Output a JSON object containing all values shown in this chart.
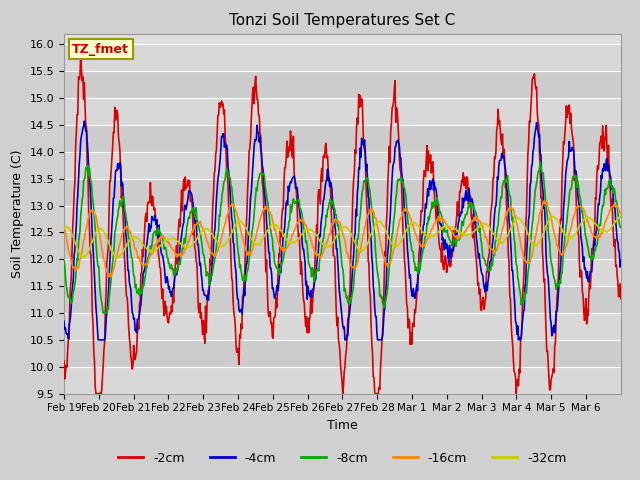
{
  "title": "Tonzi Soil Temperatures Set C",
  "xlabel": "Time",
  "ylabel": "Soil Temperature (C)",
  "ylim": [
    9.5,
    16.2
  ],
  "yticks": [
    9.5,
    10.0,
    10.5,
    11.0,
    11.5,
    12.0,
    12.5,
    13.0,
    13.5,
    14.0,
    14.5,
    15.0,
    15.5,
    16.0
  ],
  "annotation_text": "TZ_fmet",
  "annotation_bg": "#ffffcc",
  "annotation_border": "#999900",
  "series_order": [
    "-2cm",
    "-4cm",
    "-8cm",
    "-16cm",
    "-32cm"
  ],
  "series": {
    "-2cm": {
      "color": "#dd0000",
      "lw": 1.2
    },
    "-4cm": {
      "color": "#0000cc",
      "lw": 1.2
    },
    "-8cm": {
      "color": "#00aa00",
      "lw": 1.2
    },
    "-16cm": {
      "color": "#ff8800",
      "lw": 1.2
    },
    "-32cm": {
      "color": "#cccc00",
      "lw": 1.2
    }
  },
  "tick_labels": [
    "Feb 19",
    "Feb 20",
    "Feb 21",
    "Feb 22",
    "Feb 23",
    "Feb 24",
    "Feb 25",
    "Feb 26",
    "Feb 27",
    "Feb 28",
    "Mar 1",
    "Mar 2",
    "Mar 3",
    "Mar 4",
    "Mar 5",
    "Mar 6"
  ],
  "n_days": 16,
  "ppd": 48
}
